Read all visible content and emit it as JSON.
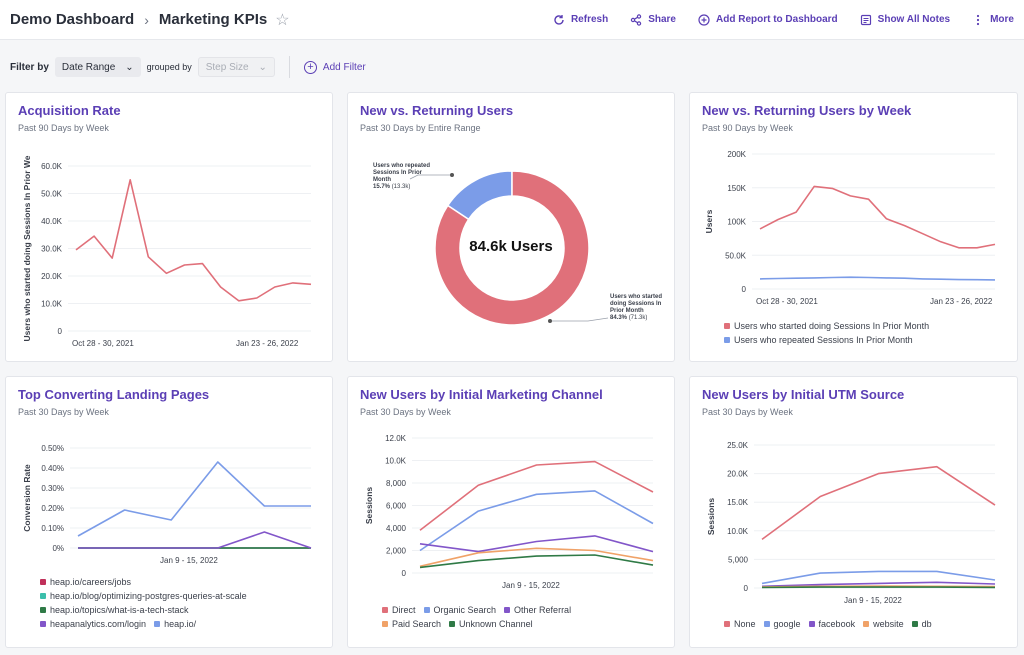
{
  "header": {
    "crumb1": "Demo Dashboard",
    "crumb2": "Marketing KPIs",
    "actions": [
      "Refresh",
      "Share",
      "Add Report to Dashboard",
      "Show All Notes",
      "More"
    ]
  },
  "filters": {
    "label": "Filter by",
    "date_range": "Date Range",
    "grouped_by": "grouped by",
    "step_size": "Step Size",
    "add_filter": "Add Filter"
  },
  "colors": {
    "accent": "#5b3fb5",
    "red": "#e0707a",
    "blue": "#7b9ce8",
    "purple": "#8256c9",
    "orange": "#f0a268",
    "green": "#2f7a46",
    "teal": "#3bbfab",
    "crimson": "#c0305a"
  },
  "cards": [
    {
      "title": "Acquisition Rate",
      "subtitle": "Past 90 Days by Week",
      "chart_data": {
        "type": "line",
        "ylabel": "Users who started doing Sessions In Prior We",
        "yticks": [
          "0",
          "10.0K",
          "20.0K",
          "30.0K",
          "40.0K",
          "50.0K",
          "60.0K"
        ],
        "ylim": [
          0,
          60000
        ],
        "xticks": [
          "Oct 28 - 30, 2021",
          "Jan 23 - 26, 2022"
        ],
        "series": [
          {
            "color": "#e0707a",
            "values": [
              29500,
              34500,
              26500,
              55000,
              27000,
              21000,
              24000,
              24500,
              16000,
              11000,
              12000,
              16000,
              17500,
              17000
            ]
          }
        ]
      }
    },
    {
      "title": "New vs. Returning Users",
      "subtitle": "Past 30 Days by Entire Range",
      "chart_data": {
        "type": "pie",
        "center_label": "84.6k Users",
        "slices": [
          {
            "label": "Users who repeated Sessions In Prior Month",
            "percent": "15.7%",
            "count": "(13.3k)",
            "value": 15.7,
            "color": "#7b9ce8"
          },
          {
            "label": "Users who started doing Sessions In Prior Month",
            "percent": "84.3%",
            "count": "(71.3k)",
            "value": 84.3,
            "color": "#e0707a"
          }
        ]
      }
    },
    {
      "title": "New vs. Returning Users by Week",
      "subtitle": "Past 90 Days by Week",
      "chart_data": {
        "type": "line",
        "ylabel": "Users",
        "yticks": [
          "0",
          "50.0K",
          "100K",
          "150K",
          "200K"
        ],
        "ylim": [
          0,
          200000
        ],
        "xticks": [
          "Oct 28 - 30, 2021",
          "Jan 23 - 26, 2022"
        ],
        "series": [
          {
            "name": "Users who started doing Sessions In Prior Month",
            "color": "#e0707a",
            "values": [
              89000,
              103000,
              114000,
              152000,
              149000,
              138000,
              133000,
              104000,
              94000,
              82000,
              70000,
              61000,
              61000,
              66000
            ]
          },
          {
            "name": "Users who repeated Sessions In Prior Month",
            "color": "#7b9ce8",
            "values": [
              15000,
              15500,
              16000,
              16500,
              17000,
              17500,
              17000,
              16500,
              16000,
              15000,
              14500,
              14000,
              13800,
              13500
            ]
          }
        ]
      }
    },
    {
      "title": "Top Converting Landing Pages",
      "subtitle": "Past 30 Days by Week",
      "chart_data": {
        "type": "line",
        "ylabel": "Conversion Rate",
        "yticks": [
          "0%",
          "0.10%",
          "0.20%",
          "0.30%",
          "0.40%",
          "0.50%"
        ],
        "ylim": [
          0,
          0.5
        ],
        "xticks": [
          "",
          "Jan 9 - 15, 2022",
          ""
        ],
        "series": [
          {
            "name": "heap.io/careers/jobs",
            "color": "#c0305a",
            "values": [
              0,
              0,
              0,
              0,
              0,
              0
            ]
          },
          {
            "name": "heap.io/blog/optimizing-postgres-queries-at-scale",
            "color": "#3bbfab",
            "values": [
              0,
              0,
              0,
              0,
              0,
              0
            ]
          },
          {
            "name": "heap.io/topics/what-is-a-tech-stack",
            "color": "#2f7a46",
            "values": [
              0,
              0,
              0,
              0,
              0,
              0
            ]
          },
          {
            "name": "heapanalytics.com/login",
            "color": "#8256c9",
            "values": [
              0,
              0,
              0,
              0,
              0.08,
              0
            ]
          },
          {
            "name": "heap.io/",
            "color": "#7b9ce8",
            "values": [
              0.06,
              0.19,
              0.14,
              0.43,
              0.21,
              0.21
            ]
          }
        ]
      }
    },
    {
      "title": "New Users by Initial Marketing Channel",
      "subtitle": "Past 30 Days by Week",
      "chart_data": {
        "type": "line",
        "ylabel": "Sessions",
        "yticks": [
          "0",
          "2,000",
          "4,000",
          "6,000",
          "8,000",
          "10.0K",
          "12.0K"
        ],
        "ylim": [
          0,
          12000
        ],
        "xticks": [
          "",
          "Jan 9 - 15, 2022",
          ""
        ],
        "series": [
          {
            "name": "Direct",
            "color": "#e0707a",
            "values": [
              3800,
              7800,
              9600,
              9900,
              7200
            ]
          },
          {
            "name": "Organic Search",
            "color": "#7b9ce8",
            "values": [
              2000,
              5500,
              7000,
              7300,
              4400
            ]
          },
          {
            "name": "Other Referral",
            "color": "#8256c9",
            "values": [
              2600,
              1900,
              2800,
              3300,
              1900
            ]
          },
          {
            "name": "Paid Search",
            "color": "#f0a268",
            "values": [
              600,
              1800,
              2200,
              2000,
              1100
            ]
          },
          {
            "name": "Unknown Channel",
            "color": "#2f7a46",
            "values": [
              500,
              1100,
              1500,
              1600,
              700
            ]
          }
        ]
      }
    },
    {
      "title": "New Users by Initial UTM Source",
      "subtitle": "Past 30 Days by Week",
      "chart_data": {
        "type": "line",
        "ylabel": "Sessions",
        "yticks": [
          "0",
          "5,000",
          "10.0K",
          "15.0K",
          "20.0K",
          "25.0K"
        ],
        "ylim": [
          0,
          25000
        ],
        "xticks": [
          "",
          "Jan 9 - 15, 2022",
          ""
        ],
        "series": [
          {
            "name": "None",
            "color": "#e0707a",
            "values": [
              8500,
              16000,
              20000,
              21200,
              14500
            ]
          },
          {
            "name": "google",
            "color": "#7b9ce8",
            "values": [
              800,
              2600,
              2900,
              2900,
              1400
            ]
          },
          {
            "name": "facebook",
            "color": "#8256c9",
            "values": [
              300,
              600,
              800,
              1000,
              700
            ]
          },
          {
            "name": "website",
            "color": "#f0a268",
            "values": [
              200,
              300,
              350,
              300,
              250
            ]
          },
          {
            "name": "db",
            "color": "#2f7a46",
            "values": [
              100,
              150,
              150,
              150,
              100
            ]
          }
        ]
      }
    }
  ]
}
